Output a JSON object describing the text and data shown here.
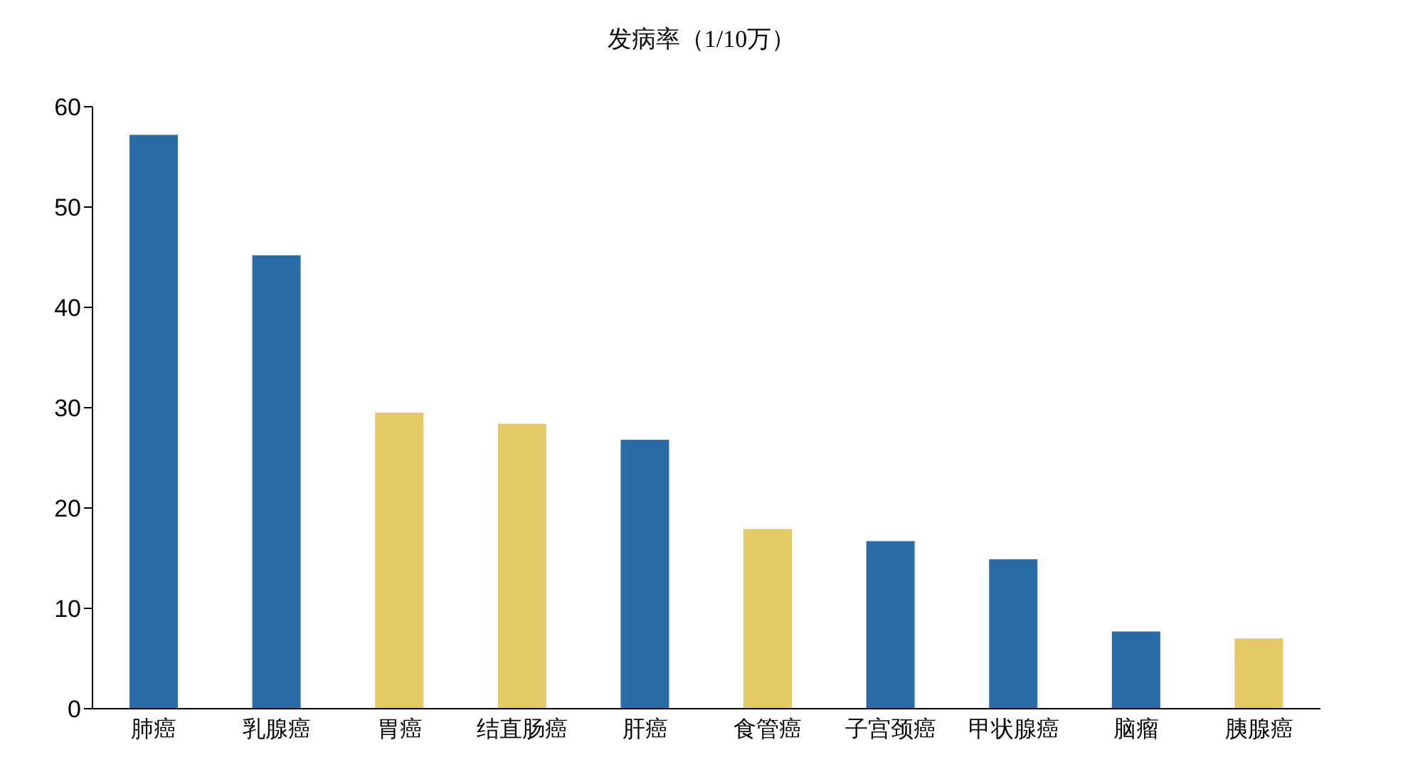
{
  "chart_data": {
    "type": "bar",
    "title": "发病率（1/10万）",
    "categories": [
      "肺癌",
      "乳腺癌",
      "胃癌",
      "结直肠癌",
      "肝癌",
      "食管癌",
      "子宫颈癌",
      "甲状腺癌",
      "脑瘤",
      "胰腺癌"
    ],
    "values": [
      57.2,
      45.2,
      29.5,
      28.4,
      26.8,
      17.9,
      16.7,
      14.9,
      7.7,
      7.0
    ],
    "colors": [
      "#2a6ca8",
      "#2a6ca8",
      "#e5c967",
      "#e5c967",
      "#2a6ca8",
      "#e5c967",
      "#2a6ca8",
      "#2a6ca8",
      "#2a6ca8",
      "#e5c967"
    ],
    "ylim": [
      0,
      60
    ],
    "yticks": [
      0,
      10,
      20,
      30,
      40,
      50,
      60
    ],
    "grid": false,
    "legend": false
  }
}
